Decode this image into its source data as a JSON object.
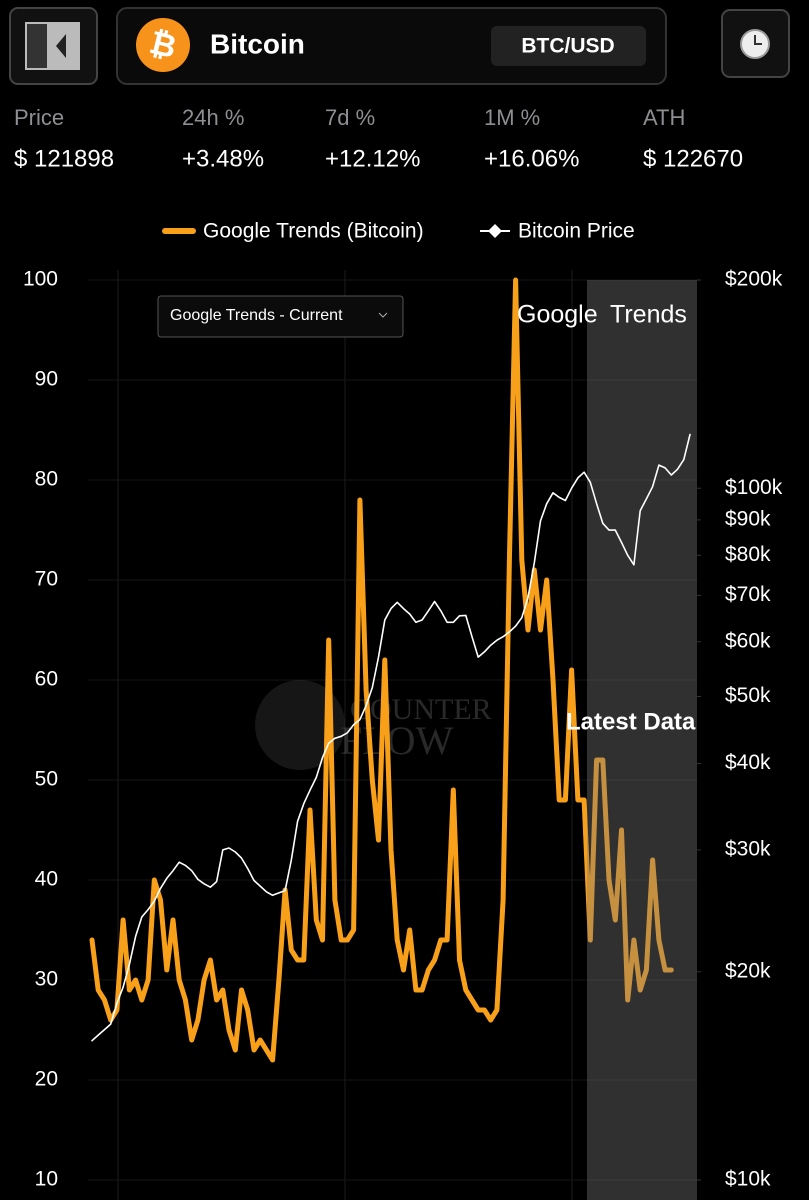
{
  "header": {
    "icon": "₿",
    "title": "Bitcoin",
    "pair": "BTC/USD"
  },
  "stats": [
    {
      "label": "Price",
      "value": "$ 121898"
    },
    {
      "label": "24h %",
      "value": "+3.48%"
    },
    {
      "label": "7d %",
      "value": "+12.12%"
    },
    {
      "label": "1M %",
      "value": "+16.06%"
    },
    {
      "label": "ATH",
      "value": "$ 122670"
    }
  ],
  "chart_data": {
    "type": "line",
    "legend": "top",
    "dropdown": "Google Trends - Current",
    "brand": {
      "google": "Google",
      "trends": "Trends"
    },
    "watermark": [
      "COUNTER",
      "FLOW"
    ],
    "annotation": "Latest Data",
    "categories": [
      null,
      null,
      null,
      null,
      null,
      null,
      null,
      null,
      null,
      null,
      null,
      null,
      null,
      null,
      null,
      null,
      null,
      null,
      null,
      null,
      null,
      null,
      null,
      null,
      null,
      null,
      null,
      null,
      null,
      null,
      null,
      null,
      null,
      null,
      null,
      null,
      null,
      null,
      null,
      null,
      null,
      null,
      null,
      null,
      null,
      null,
      null,
      null,
      null,
      null,
      null,
      null,
      null,
      null,
      null,
      null,
      null,
      null,
      null,
      null,
      null,
      null,
      null,
      null,
      null,
      null,
      null,
      null,
      null,
      null,
      null,
      null,
      null,
      null,
      null,
      null,
      null,
      null,
      null,
      null,
      null,
      null,
      null,
      null,
      null,
      null,
      null,
      null,
      null,
      null,
      null,
      null,
      null,
      null,
      null,
      null,
      null
    ],
    "series": [
      {
        "name": "Google Trends (Bitcoin)",
        "color": "#f9a01b",
        "values": [
          34,
          29,
          28,
          26,
          27,
          36,
          29,
          30,
          28,
          30,
          40,
          38,
          31,
          36,
          30,
          28,
          24,
          26,
          30,
          32,
          28,
          29,
          25,
          23,
          29,
          27,
          23,
          24,
          23,
          22,
          30,
          39,
          33,
          32,
          32,
          47,
          36,
          34,
          64,
          38,
          34,
          34,
          35,
          78,
          59,
          50,
          44,
          62,
          43,
          34,
          31,
          35,
          29,
          29,
          31,
          32,
          34,
          34,
          49,
          32,
          29,
          28,
          27,
          27,
          26,
          27,
          38,
          72,
          100,
          72,
          65,
          71,
          65,
          70,
          60,
          48,
          48,
          61,
          48,
          48,
          34,
          52,
          52,
          40,
          36,
          45,
          28,
          34,
          29,
          31,
          42,
          34,
          31,
          31,
          null,
          null,
          null
        ]
      },
      {
        "name": "Bitcoin Price",
        "color": "#ffffff",
        "axis": "y2",
        "values": [
          15900,
          16200,
          16500,
          16800,
          18000,
          19000,
          20500,
          22500,
          24000,
          24600,
          25300,
          26400,
          27300,
          28000,
          28800,
          28500,
          28000,
          27200,
          26800,
          26500,
          27000,
          30000,
          30200,
          29800,
          29200,
          28200,
          27100,
          26600,
          26100,
          25800,
          26000,
          26200,
          29000,
          33000,
          35000,
          36600,
          38200,
          40800,
          42800,
          43500,
          43800,
          44300,
          45500,
          46300,
          48500,
          51500,
          57000,
          64500,
          67000,
          68400,
          67000,
          65800,
          64000,
          64500,
          66500,
          68600,
          66500,
          64000,
          64000,
          65400,
          65500,
          61000,
          57000,
          58000,
          59300,
          60300,
          61000,
          62000,
          63200,
          65000,
          69500,
          78000,
          89700,
          95000,
          98500,
          97000,
          96000,
          100000,
          103500,
          105500,
          102000,
          95000,
          89000,
          87000,
          87000,
          83500,
          80000,
          77500,
          92800,
          96500,
          100500,
          108000,
          107000,
          104500,
          106500,
          110000,
          119600
        ]
      }
    ],
    "ylim": [
      10,
      100
    ],
    "yticks": [
      10,
      20,
      30,
      40,
      50,
      60,
      70,
      80,
      90,
      100
    ],
    "y2lim": [
      10000,
      200000
    ],
    "y2scale": "log",
    "y2ticks": [
      {
        "value": 200000,
        "label": "$200k"
      },
      {
        "value": 100000,
        "label": "$100k"
      },
      {
        "value": 90000,
        "label": "$90k"
      },
      {
        "value": 80000,
        "label": "$80k"
      },
      {
        "value": 70000,
        "label": "$70k"
      },
      {
        "value": 60000,
        "label": "$60k"
      },
      {
        "value": 50000,
        "label": "$50k"
      },
      {
        "value": 40000,
        "label": "$40k"
      },
      {
        "value": 30000,
        "label": "$30k"
      },
      {
        "value": 20000,
        "label": "$20k"
      },
      {
        "value": 10000,
        "label": "$10k"
      }
    ],
    "grid": true
  }
}
